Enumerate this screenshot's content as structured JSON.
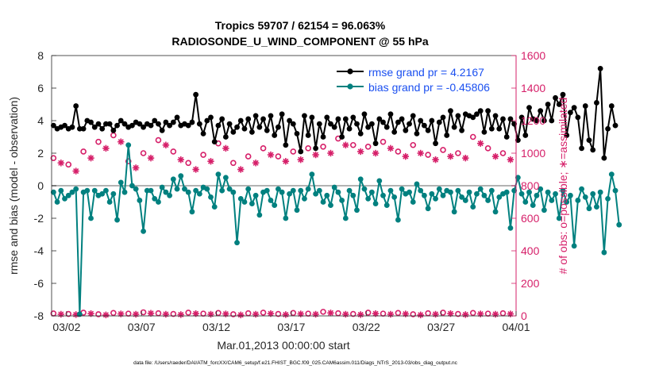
{
  "chart_data": {
    "type": "line",
    "title_line1": "Tropics 59707 / 62154 = 96.063%",
    "title_line2": "RADIOSONDE_U_WIND_COMPONENT @ 55 hPa",
    "xlabel": "Mar.01,2013 00:00:00 start",
    "ylabel_left": "rmse and bias (model - observation)",
    "ylabel_right": "# of obs: o=possible; ∗=assimilated",
    "xlim": [
      0,
      31
    ],
    "ylim_left": [
      -8,
      8
    ],
    "ylim_right": [
      0,
      1600
    ],
    "x_ticks": [
      {
        "value": 1,
        "label": "03/02"
      },
      {
        "value": 6,
        "label": "03/07"
      },
      {
        "value": 11,
        "label": "03/12"
      },
      {
        "value": 16,
        "label": "03/17"
      },
      {
        "value": 21,
        "label": "03/22"
      },
      {
        "value": 26,
        "label": "03/27"
      },
      {
        "value": 31,
        "label": "04/01"
      }
    ],
    "y_ticks_left": [
      -8,
      -6,
      -4,
      -2,
      0,
      2,
      4,
      6,
      8
    ],
    "y_ticks_right": [
      0,
      200,
      400,
      600,
      800,
      1000,
      1200,
      1400,
      1600
    ],
    "legend": [
      {
        "label": "rmse grand pr = 4.2167",
        "color": "#000000"
      },
      {
        "label": "bias grand pr = -0.45806",
        "color": "#00807f"
      }
    ],
    "legend_text_color": "#1a4ff0",
    "footer": "data file: /Users/raeder/DAI/ATM_forcXX/CAM6_setup/f.e21.FHIST_BGC.f09_025.CAM6assim.011/Diags_NTrS_2013-03/obs_diag_output.nc",
    "colors": {
      "rmse": "#000000",
      "bias": "#00807f",
      "obs": "#d61f69",
      "zero_line": "#b3b3b3",
      "right_axis": "#d61f69"
    },
    "series": [
      {
        "name": "rmse",
        "axis": "left",
        "step": 0.25,
        "start": 0.125,
        "values": [
          3.7,
          3.5,
          3.6,
          3.7,
          3.5,
          3.6,
          4.9,
          3.5,
          3.5,
          4.0,
          3.9,
          3.6,
          3.8,
          3.5,
          3.8,
          3.8,
          3.4,
          3.7,
          4.0,
          3.8,
          3.6,
          3.7,
          3.9,
          3.8,
          3.6,
          3.8,
          3.7,
          4.0,
          3.8,
          3.4,
          3.9,
          3.7,
          3.9,
          4.2,
          3.7,
          3.8,
          3.7,
          3.9,
          5.6,
          3.8,
          3.2,
          4.0,
          4.2,
          2.7,
          3.7,
          4.1,
          3.0,
          3.8,
          3.3,
          3.6,
          4.0,
          3.5,
          4.1,
          3.3,
          4.3,
          3.6,
          4.1,
          3.4,
          4.3,
          3.1,
          3.6,
          4.4,
          2.5,
          4.0,
          3.8,
          3.2,
          2.1,
          4.3,
          3.1,
          4.2,
          2.3,
          3.8,
          3.0,
          4.2,
          3.8,
          3.6,
          4.1,
          3.0,
          4.1,
          3.5,
          4.2,
          3.8,
          3.2,
          4.4,
          3.6,
          3.8,
          2.6,
          4.1,
          3.9,
          3.6,
          4.4,
          3.3,
          3.9,
          4.1,
          3.4,
          3.8,
          4.3,
          3.2,
          4.0,
          3.7,
          3.4,
          4.0,
          2.6,
          3.9,
          4.2,
          3.1,
          4.6,
          3.6,
          4.3,
          3.4,
          4.4,
          4.3,
          4.2,
          4.4,
          4.6,
          3.3,
          4.6,
          3.5,
          4.3,
          3.5,
          4.1,
          3.0,
          4.1,
          3.8,
          2.8,
          4.2,
          3.1,
          4.8,
          4.1,
          4.0,
          4.6,
          4.0,
          5.0,
          4.0,
          5.4,
          5.0,
          5.6,
          3.1,
          4.5,
          4.8,
          4.2,
          2.3,
          4.9,
          2.8,
          2.2,
          5.1,
          7.2,
          1.7,
          3.5,
          4.9,
          3.7
        ]
      },
      {
        "name": "bias",
        "axis": "left",
        "step": 0.25,
        "start": 0.125,
        "values": [
          -0.4,
          -1.0,
          -0.3,
          -0.8,
          -0.6,
          -0.4,
          -0.2,
          -7.9,
          -0.4,
          -0.3,
          -2.0,
          -0.3,
          -0.6,
          -0.5,
          -0.3,
          -1.0,
          -0.5,
          -2.1,
          0.2,
          -0.4,
          2.5,
          0.0,
          -0.2,
          -0.9,
          -2.8,
          -0.3,
          -0.3,
          -0.8,
          -1.0,
          -0.1,
          -0.4,
          -0.6,
          0.4,
          -0.2,
          0.6,
          -0.2,
          -0.4,
          -1.6,
          -0.3,
          -0.5,
          -0.1,
          -0.2,
          -0.7,
          -1.3,
          0.7,
          -0.3,
          0.5,
          -0.2,
          -0.4,
          -3.5,
          -0.8,
          -1.0,
          -0.2,
          -1.1,
          -0.6,
          -1.8,
          -0.4,
          -0.3,
          -0.9,
          -1.2,
          -0.2,
          -0.4,
          -2.0,
          -0.5,
          -0.3,
          -1.5,
          -0.3,
          -0.8,
          -0.2,
          0.7,
          -0.5,
          -0.3,
          -1.0,
          -0.6,
          -1.2,
          -0.1,
          -0.4,
          -0.9,
          -2.0,
          -0.3,
          -0.6,
          -1.5,
          0.4,
          -0.2,
          -0.8,
          -0.4,
          -1.1,
          0.3,
          -0.6,
          -1.2,
          -0.3,
          -0.7,
          -2.1,
          -0.2,
          -0.5,
          -0.4,
          -1.0,
          0.1,
          -0.3,
          -0.6,
          -1.4,
          -0.5,
          -0.8,
          -0.2,
          -0.6,
          -0.3,
          -0.4,
          -1.6,
          -0.3,
          -0.7,
          -0.9,
          -0.4,
          -1.3,
          -0.5,
          -0.2,
          -0.6,
          -0.9,
          -0.3,
          -1.6,
          -0.7,
          -0.5,
          -0.4,
          -2.6,
          -0.3,
          0.5,
          -0.5,
          -1.0,
          -0.4,
          -1.2,
          -0.6,
          -0.2,
          -1.5,
          -0.4,
          -0.9,
          -0.5,
          -2.0,
          -0.3,
          -1.0,
          -0.6,
          -3.7,
          -0.9,
          -0.2,
          -0.7,
          -1.4,
          -0.5,
          -1.3,
          -0.4,
          -4.1,
          -0.8,
          0.7,
          -0.3,
          -2.4
        ]
      }
    ],
    "obs_counts": {
      "axis": "right",
      "step": 1,
      "start": 0.125,
      "possible": [
        970,
        930,
        1010,
        1070,
        1110,
        950,
        1000,
        1080,
        1010,
        940,
        990,
        1060,
        940,
        980,
        1030,
        980,
        1010,
        1030,
        1040,
        1090,
        1050,
        1040,
        1070,
        1010,
        1050,
        990,
        1020,
        1000,
        1100,
        1030,
        1000
      ],
      "assimilated": [
        940,
        890,
        970,
        1030,
        1070,
        910,
        970,
        1050,
        960,
        900,
        950,
        1030,
        900,
        940,
        990,
        950,
        960,
        990,
        1000,
        1050,
        1010,
        1000,
        1030,
        980,
        1000,
        960,
        980,
        970,
        1060,
        980,
        960
      ],
      "possible_bottom": [
        15,
        12,
        20,
        10,
        18,
        14,
        22,
        16,
        12,
        20,
        14,
        18,
        10,
        16,
        20,
        12,
        18,
        14,
        25,
        16,
        12,
        20,
        14,
        18,
        10,
        16,
        20,
        12,
        18,
        14,
        16
      ],
      "assimilated_bottom": [
        10,
        8,
        14,
        6,
        12,
        10,
        16,
        10,
        8,
        14,
        10,
        12,
        6,
        10,
        14,
        8,
        12,
        10,
        18,
        10,
        8,
        14,
        10,
        12,
        6,
        10,
        14,
        8,
        12,
        10,
        12
      ]
    }
  }
}
